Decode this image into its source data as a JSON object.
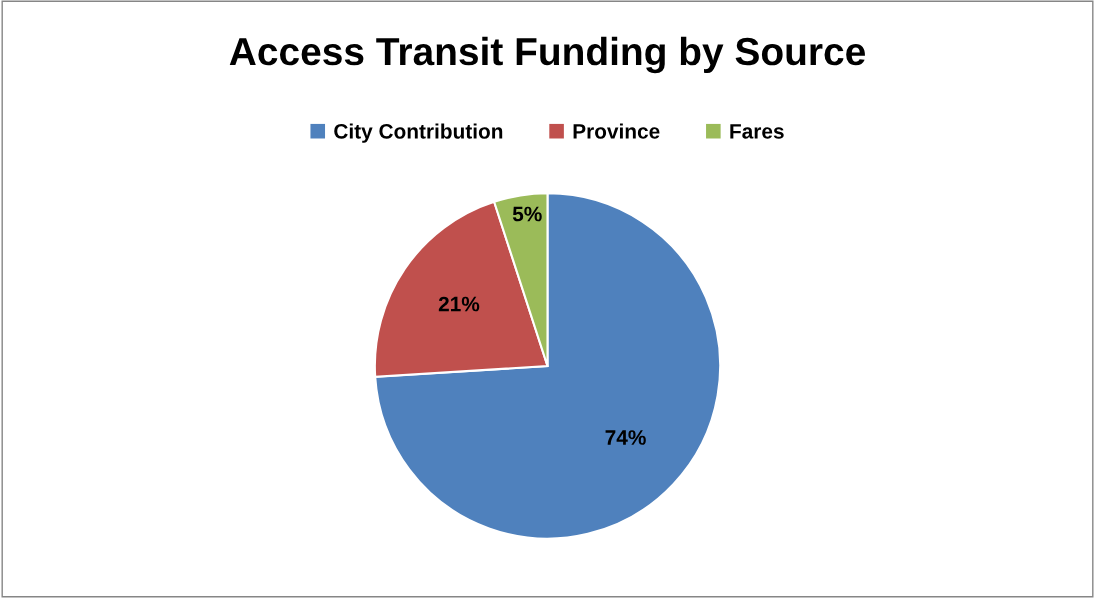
{
  "chart_data": {
    "type": "pie",
    "title": "Access Transit Funding by Source",
    "categories": [
      "City Contribution",
      "Province",
      "Fares"
    ],
    "values": [
      74,
      21,
      5
    ],
    "colors": [
      "#4f81bd",
      "#c0504d",
      "#9bbb59"
    ],
    "value_labels": [
      "74%",
      "21%",
      "5%"
    ],
    "legend": "top"
  }
}
